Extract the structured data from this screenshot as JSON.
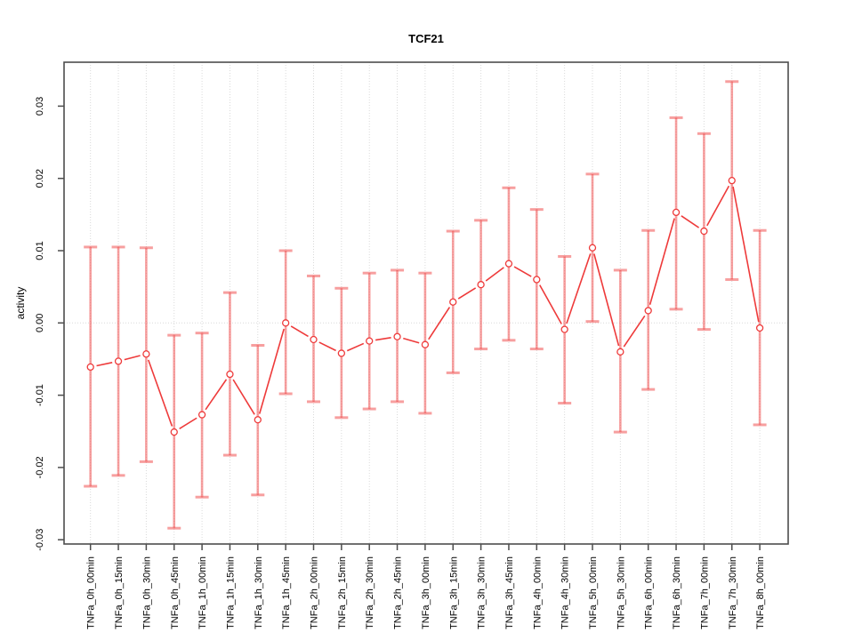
{
  "chart_data": {
    "type": "line",
    "title": "TCF21",
    "xlabel": "",
    "ylabel": "activity",
    "ylim": [
      -0.0306,
      0.0361
    ],
    "grid": {
      "vertical": "dotted line at every category",
      "horizontal": "dotted line at 0 only"
    },
    "legend": "none",
    "marker": "open-circle",
    "error_bars": true,
    "y_ticks": {
      "values": [
        0.03,
        0.02,
        0.01,
        0.0,
        -0.01,
        -0.02,
        -0.03
      ],
      "labels": [
        "0.03",
        "0.02",
        "0.01",
        "0.00",
        "-0.01",
        "-0.02",
        "-0.03"
      ]
    },
    "categories": [
      "TNFa_0h_00min",
      "TNFa_0h_15min",
      "TNFa_0h_30min",
      "TNFa_0h_45min",
      "TNFa_1h_00min",
      "TNFa_1h_15min",
      "TNFa_1h_30min",
      "TNFa_1h_45min",
      "TNFa_2h_00min",
      "TNFa_2h_15min",
      "TNFa_2h_30min",
      "TNFa_2h_45min",
      "TNFa_3h_00min",
      "TNFa_3h_15min",
      "TNFa_3h_30min",
      "TNFa_3h_45min",
      "TNFa_4h_00min",
      "TNFa_4h_30min",
      "TNFa_5h_00min",
      "TNFa_5h_30min",
      "TNFa_6h_00min",
      "TNFa_6h_30min",
      "TNFa_7h_00min",
      "TNFa_7h_30min",
      "TNFa_8h_00min"
    ],
    "series": [
      {
        "name": "activity",
        "means": [
          -0.0061,
          -0.0053,
          -0.0043,
          -0.0151,
          -0.0127,
          -0.0071,
          -0.0134,
          0.0,
          -0.0023,
          -0.0042,
          -0.0025,
          -0.0019,
          -0.003,
          0.0029,
          0.0053,
          0.0082,
          0.006,
          -0.0009,
          0.0104,
          -0.004,
          0.0017,
          0.0153,
          0.0127,
          0.0197,
          -0.0007
        ],
        "upper": [
          0.0105,
          0.0105,
          0.0104,
          -0.0017,
          -0.0014,
          0.0042,
          -0.0031,
          0.01,
          0.0065,
          0.0048,
          0.0069,
          0.0073,
          0.0069,
          0.0127,
          0.0142,
          0.0187,
          0.0157,
          0.0092,
          0.0206,
          0.0073,
          0.0128,
          0.0284,
          0.0262,
          0.0334,
          0.0128
        ],
        "lower": [
          -0.0226,
          -0.0211,
          -0.0192,
          -0.0284,
          -0.0241,
          -0.0183,
          -0.0238,
          -0.0098,
          -0.0109,
          -0.0131,
          -0.0119,
          -0.0109,
          -0.0125,
          -0.0069,
          -0.0036,
          -0.0024,
          -0.0036,
          -0.0111,
          0.0002,
          -0.0151,
          -0.0092,
          0.0019,
          -0.0009,
          0.006,
          -0.0141
        ]
      }
    ],
    "colors": {
      "line": "#ee3a3a",
      "error_bar": "rgba(240,80,80,0.55)",
      "grid": "#d9d9d9",
      "axis": "#4d4d4d",
      "text": "#000000",
      "background": "#ffffff"
    }
  }
}
